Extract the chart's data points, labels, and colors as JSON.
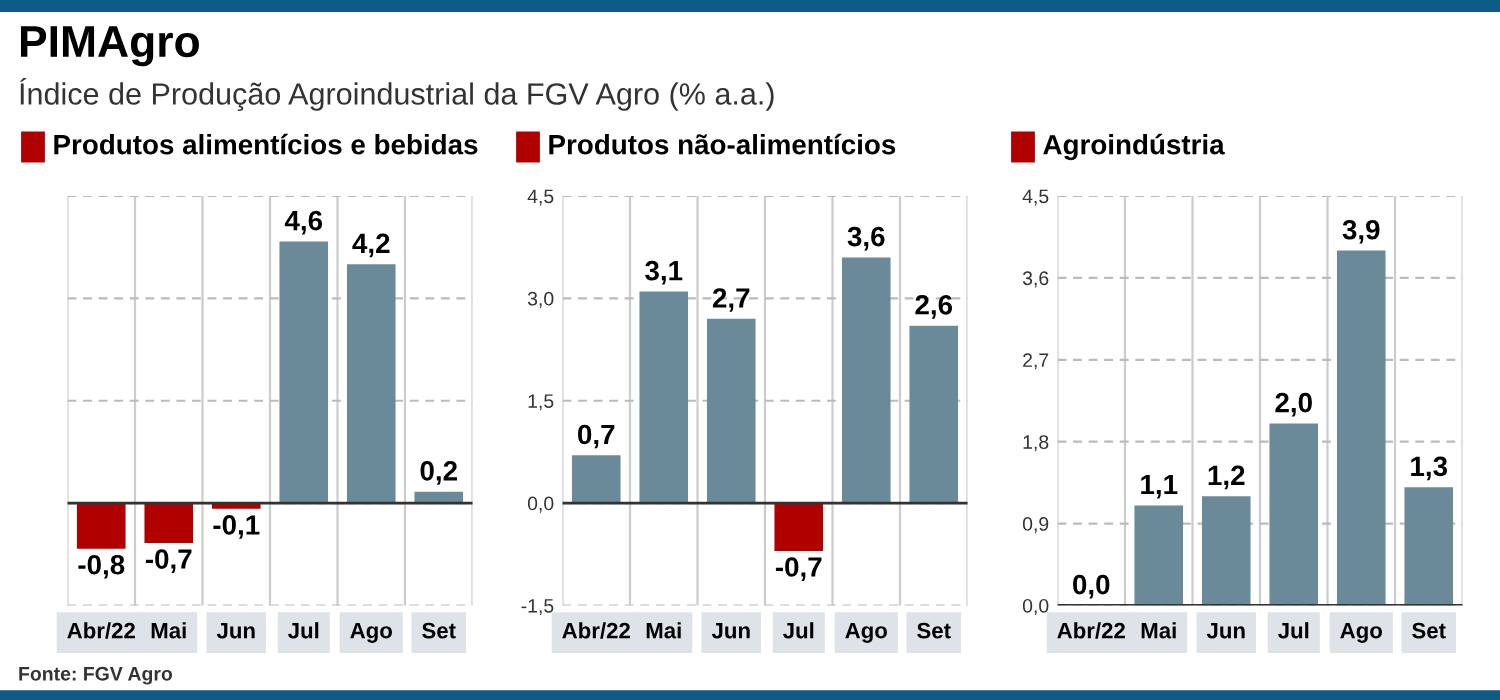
{
  "chart_data": [
    {
      "type": "bar",
      "title": "Produtos alimentícios e bebidas",
      "subtitle": "Índice de Produção Agroindustrial da FGV Agro (% a.a.)",
      "annotations": [
        "PIMAgro",
        "Fonte: FGV Agro"
      ],
      "categories": [
        "Abr/22",
        "Mai",
        "Jun",
        "Jul",
        "Ago",
        "Set"
      ],
      "values": [
        -0.8,
        -0.7,
        -0.1,
        4.6,
        4.2,
        0.2
      ],
      "colors": [
        "#b00000",
        "#b00000",
        "#b00000",
        "#6a8a99",
        "#6a8a99",
        "#6a8a99"
      ],
      "value_labels": [
        "-0,8",
        "-0,7",
        "-0,1",
        "4,6",
        "4,2",
        "0,2"
      ],
      "ylim": [
        -1.8,
        5.4
      ],
      "yticks": [
        {
          "value": -1.8,
          "label": null
        },
        {
          "value": 0,
          "label": null
        },
        {
          "value": 1.8,
          "label": null
        },
        {
          "value": 3.6,
          "label": null
        },
        {
          "value": 5.4,
          "label": null
        }
      ],
      "tick_labels": "x",
      "grid": true
    },
    {
      "type": "bar",
      "title": "Produtos não-alimentícios",
      "categories": [
        "Abr/22",
        "Mai",
        "Jun",
        "Jul",
        "Ago",
        "Set"
      ],
      "values": [
        0.7,
        3.1,
        2.7,
        -0.7,
        3.6,
        2.6
      ],
      "colors": [
        "#6a8a99",
        "#6a8a99",
        "#6a8a99",
        "#b00000",
        "#6a8a99",
        "#6a8a99"
      ],
      "value_labels": [
        "0,7",
        "3,1",
        "2,7",
        "-0,7",
        "3,6",
        "2,6"
      ],
      "ylim": [
        -1.5,
        4.5
      ],
      "yticks": [
        {
          "value": -1.5,
          "label": "-1,5"
        },
        {
          "value": 0,
          "label": "0,0"
        },
        {
          "value": 1.5,
          "label": "1,5"
        },
        {
          "value": 3.0,
          "label": "3,0"
        },
        {
          "value": 4.5,
          "label": "4,5"
        }
      ],
      "grid": true
    },
    {
      "type": "bar",
      "title": "Agroindústria",
      "categories": [
        "Abr/22",
        "Mai",
        "Jun",
        "Jul",
        "Ago",
        "Set"
      ],
      "values": [
        0.0,
        1.1,
        1.2,
        2.0,
        3.9,
        1.3
      ],
      "colors": [
        "#6a8a99",
        "#6a8a99",
        "#6a8a99",
        "#6a8a99",
        "#6a8a99",
        "#6a8a99"
      ],
      "value_labels": [
        "0,0",
        "1,1",
        "1,2",
        "2,0",
        "3,9",
        "1,3"
      ],
      "ylim": [
        0,
        4.5
      ],
      "yticks": [
        {
          "value": 0,
          "label": "0,0"
        },
        {
          "value": 0.9,
          "label": "0,9"
        },
        {
          "value": 1.8,
          "label": "1,8"
        },
        {
          "value": 2.7,
          "label": "2,7"
        },
        {
          "value": 3.6,
          "label": "3,6"
        },
        {
          "value": 4.5,
          "label": "4,5"
        }
      ],
      "grid": true
    }
  ]
}
